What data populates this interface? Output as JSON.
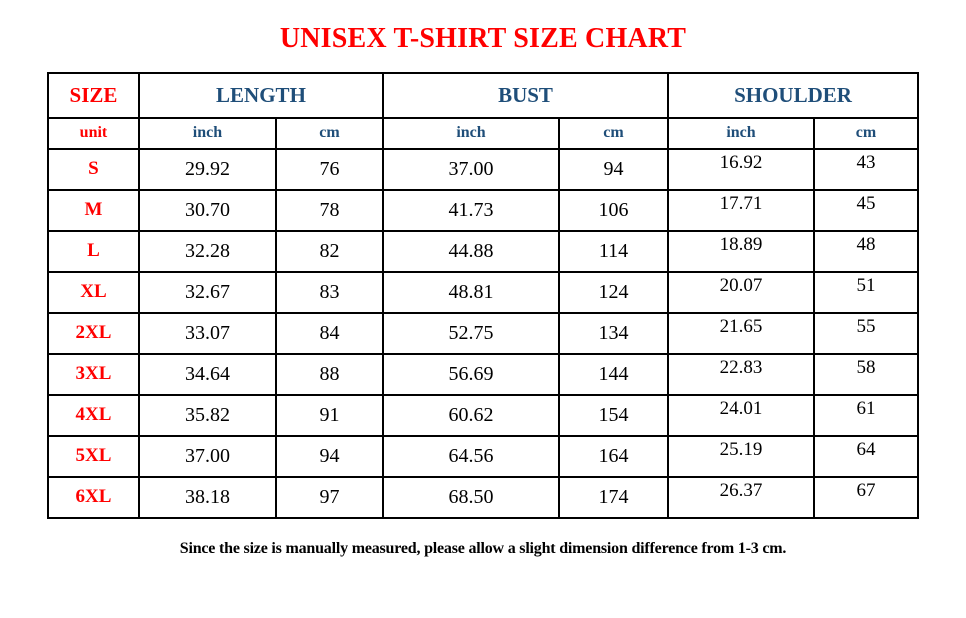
{
  "title": "UNISEX T-SHIRT SIZE CHART",
  "footer_note": "Since the size is manually measured, please allow a slight dimension difference from 1-3 cm.",
  "colors": {
    "title_red": "#ff0000",
    "size_label_red": "#ff0000",
    "header_blue": "#1f4e79",
    "body_text": "#000000",
    "border": "#000000",
    "background": "#ffffff"
  },
  "table": {
    "group_headers": {
      "size": "SIZE",
      "length": "LENGTH",
      "bust": "BUST",
      "shoulder": "SHOULDER"
    },
    "unit_row": {
      "label": "unit",
      "units": [
        "inch",
        "cm",
        "inch",
        "cm",
        "inch",
        "cm"
      ]
    },
    "rows": [
      {
        "size": "S",
        "values": [
          "29.92",
          "76",
          "37.00",
          "94",
          "16.92",
          "43"
        ]
      },
      {
        "size": "M",
        "values": [
          "30.70",
          "78",
          "41.73",
          "106",
          "17.71",
          "45"
        ]
      },
      {
        "size": "L",
        "values": [
          "32.28",
          "82",
          "44.88",
          "114",
          "18.89",
          "48"
        ]
      },
      {
        "size": "XL",
        "values": [
          "32.67",
          "83",
          "48.81",
          "124",
          "20.07",
          "51"
        ]
      },
      {
        "size": "2XL",
        "values": [
          "33.07",
          "84",
          "52.75",
          "134",
          "21.65",
          "55"
        ]
      },
      {
        "size": "3XL",
        "values": [
          "34.64",
          "88",
          "56.69",
          "144",
          "22.83",
          "58"
        ]
      },
      {
        "size": "4XL",
        "values": [
          "35.82",
          "91",
          "60.62",
          "154",
          "24.01",
          "61"
        ]
      },
      {
        "size": "5XL",
        "values": [
          "37.00",
          "94",
          "64.56",
          "164",
          "25.19",
          "64"
        ]
      },
      {
        "size": "6XL",
        "values": [
          "38.18",
          "97",
          "68.50",
          "174",
          "26.37",
          "67"
        ]
      }
    ]
  },
  "chart_data": {
    "type": "table",
    "title": "UNISEX T-SHIRT SIZE CHART",
    "columns": [
      "SIZE",
      "LENGTH inch",
      "LENGTH cm",
      "BUST inch",
      "BUST cm",
      "SHOULDER inch",
      "SHOULDER cm"
    ],
    "rows": [
      [
        "S",
        29.92,
        76,
        37.0,
        94,
        16.92,
        43
      ],
      [
        "M",
        30.7,
        78,
        41.73,
        106,
        17.71,
        45
      ],
      [
        "L",
        32.28,
        82,
        44.88,
        114,
        18.89,
        48
      ],
      [
        "XL",
        32.67,
        83,
        48.81,
        124,
        20.07,
        51
      ],
      [
        "2XL",
        33.07,
        84,
        52.75,
        134,
        21.65,
        55
      ],
      [
        "3XL",
        34.64,
        88,
        56.69,
        144,
        22.83,
        58
      ],
      [
        "4XL",
        35.82,
        91,
        60.62,
        154,
        24.01,
        61
      ],
      [
        "5XL",
        37.0,
        94,
        64.56,
        164,
        25.19,
        64
      ],
      [
        "6XL",
        38.18,
        97,
        68.5,
        174,
        26.37,
        67
      ]
    ],
    "note": "Since the size is manually measured, please allow a slight dimension difference from 1-3 cm."
  }
}
